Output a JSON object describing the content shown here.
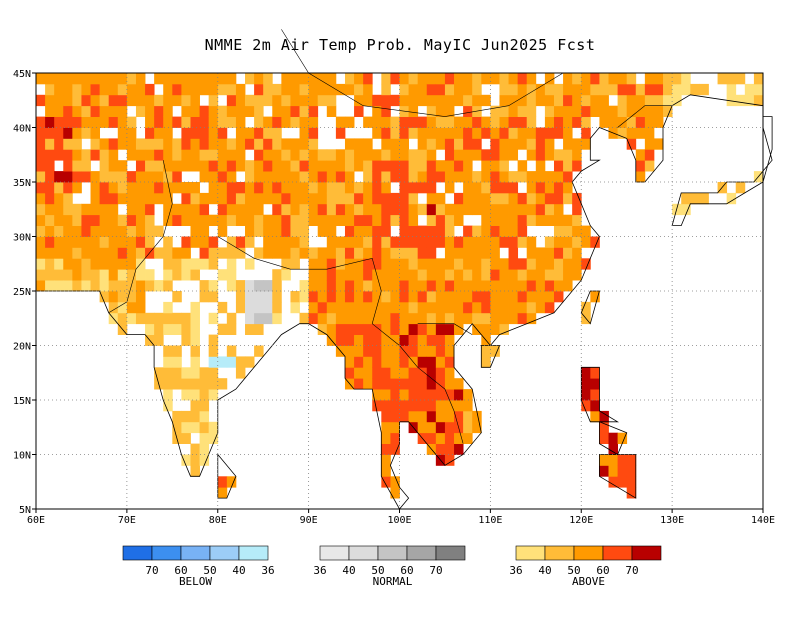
{
  "title": "NMME 2m Air Temp Prob. MayIC  Jun2025 Fcst",
  "map": {
    "lon_range": [
      60,
      140
    ],
    "lat_range": [
      5,
      45
    ],
    "x_ticks": [
      "60E",
      "70E",
      "80E",
      "90E",
      "100E",
      "110E",
      "120E",
      "130E",
      "140E"
    ],
    "y_ticks": [
      "45N",
      "40N",
      "35N",
      "30N",
      "25N",
      "20N",
      "15N",
      "10N",
      "5N"
    ],
    "grid": "dotted"
  },
  "legend": {
    "below": {
      "label": "BELOW",
      "colors": [
        "#1f6fe6",
        "#3c8ff0",
        "#78b2f5",
        "#9ccdf7",
        "#b6ecf9"
      ],
      "ticks": [
        "70",
        "60",
        "50",
        "40",
        "36"
      ]
    },
    "normal": {
      "label": "NORMAL",
      "colors": [
        "#e8e8e8",
        "#dcdcdc",
        "#c4c4c4",
        "#a6a6a6",
        "#808080"
      ],
      "ticks": [
        "36",
        "40",
        "50",
        "60",
        "70"
      ]
    },
    "above": {
      "label": "ABOVE",
      "colors": [
        "#ffe17a",
        "#ffbc38",
        "#ff9a00",
        "#ff4a10",
        "#b80000"
      ],
      "ticks": [
        "36",
        "40",
        "50",
        "60",
        "70"
      ]
    }
  },
  "chart_data": {
    "type": "heatmap",
    "title": "NMME 2m Air Temp Prob. MayIC  Jun2025 Fcst",
    "categories_legend": [
      "BELOW",
      "NORMAL",
      "ABOVE"
    ],
    "probability_bins": [
      "36",
      "40",
      "50",
      "60",
      "70"
    ],
    "regions": [
      {
        "category": "ABOVE",
        "bin": "50",
        "lon_min": 60,
        "lon_max": 110,
        "lat_min": 28,
        "lat_max": 45
      },
      {
        "category": "ABOVE",
        "bin": "60",
        "lon_min": 60,
        "lon_max": 64,
        "lat_min": 33,
        "lat_max": 41
      },
      {
        "category": "ABOVE",
        "bin": "60",
        "lon_min": 94,
        "lon_max": 100,
        "lat_min": 15,
        "lat_max": 22
      },
      {
        "category": "ABOVE",
        "bin": "60",
        "lon_min": 100,
        "lon_max": 106,
        "lat_min": 10,
        "lat_max": 17
      },
      {
        "category": "ABOVE",
        "bin": "70",
        "lon_min": 103,
        "lon_max": 104,
        "lat_min": 32,
        "lat_max": 33
      },
      {
        "category": "ABOVE",
        "bin": "60",
        "lon_min": 118,
        "lon_max": 125,
        "lat_min": 7,
        "lat_max": 15
      },
      {
        "category": "ABOVE",
        "bin": "50",
        "lon_min": 98,
        "lon_max": 122,
        "lat_min": 22,
        "lat_max": 32
      },
      {
        "category": "NORMAL",
        "bin": "40",
        "lon_min": 83,
        "lon_max": 85,
        "lat_min": 20,
        "lat_max": 26
      },
      {
        "category": "BELOW",
        "bin": "40",
        "lon_min": 79,
        "lon_max": 82,
        "lat_min": 18,
        "lat_max": 19
      }
    ]
  }
}
